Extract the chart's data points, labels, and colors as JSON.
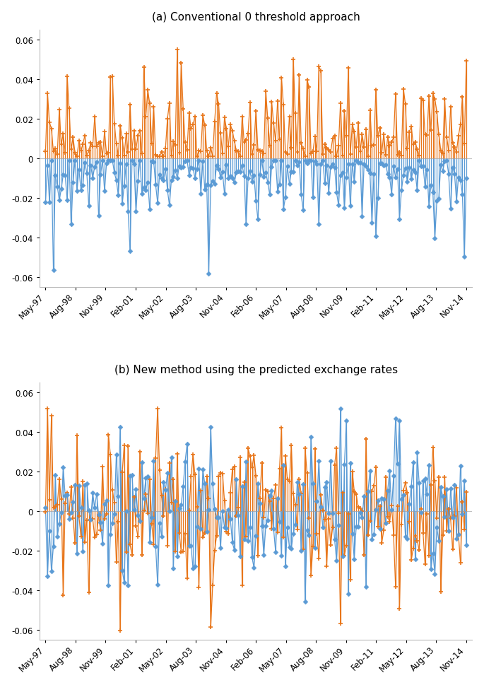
{
  "title_a": "(a) Conventional 0 threshold approach",
  "title_b": "(b) New method using the predicted exchange rates",
  "x_labels": [
    "May-97",
    "Aug-98",
    "Nov-99",
    "Feb-01",
    "May-02",
    "Aug-03",
    "Nov-04",
    "Feb-06",
    "May-07",
    "Aug-08",
    "Nov-09",
    "Feb-11",
    "May-12",
    "Aug-13",
    "Nov-14"
  ],
  "ylim": [
    -0.065,
    0.065
  ],
  "yticks": [
    -0.06,
    -0.04,
    -0.02,
    0,
    0.02,
    0.04,
    0.06
  ],
  "orange_color": "#E8761A",
  "blue_color": "#5B9BD5",
  "background": "#FFFFFF",
  "n_points": 215,
  "seeds": [
    42,
    99
  ]
}
